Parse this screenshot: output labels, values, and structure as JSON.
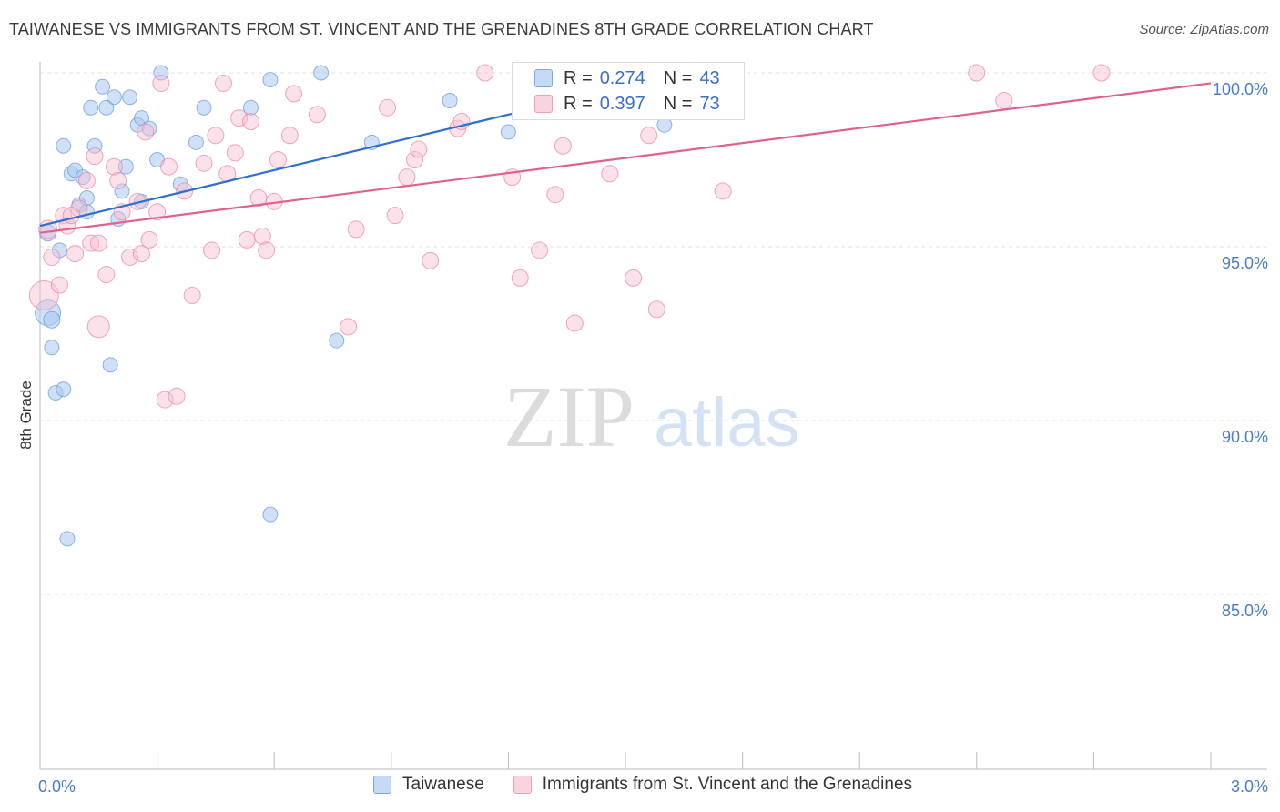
{
  "header": {
    "title": "TAIWANESE VS IMMIGRANTS FROM ST. VINCENT AND THE GRENADINES 8TH GRADE CORRELATION CHART",
    "source": "Source: ZipAtlas.com"
  },
  "watermark": {
    "zip": "ZIP",
    "atlas": "atlas"
  },
  "legend": {
    "rows": [
      {
        "r_label": "R =",
        "r_value": "0.274",
        "n_label": "N =",
        "n_value": "43",
        "color": "#a9c8f0",
        "border": "#6c9be0"
      },
      {
        "r_label": "R =",
        "r_value": "0.397",
        "n_label": "N =",
        "n_value": "73",
        "color": "#f7bfd0",
        "border": "#e88aa8"
      }
    ]
  },
  "bottom_legend": {
    "items": [
      {
        "label": "Taiwanese",
        "color": "#c4daf5",
        "border": "#7aa6e2"
      },
      {
        "label": "Immigrants from St. Vincent and the Grenadines",
        "color": "#fbd3de",
        "border": "#ee9fb8"
      }
    ]
  },
  "chart_data": {
    "type": "scatter",
    "title": "TAIWANESE VS IMMIGRANTS FROM ST. VINCENT AND THE GRENADINES 8TH GRADE CORRELATION CHART",
    "xlabel": "",
    "ylabel": "8th Grade",
    "xlim": [
      0.0,
      3.0
    ],
    "ylim": [
      80.0,
      100.5
    ],
    "x_tick_labels": [
      "0.0%",
      "3.0%"
    ],
    "y_ticks": [
      100.0,
      95.0,
      90.0,
      85.0
    ],
    "y_tick_labels": [
      "100.0%",
      "95.0%",
      "90.0%",
      "85.0%"
    ],
    "grid": true,
    "legend_position": "top-center",
    "series": [
      {
        "name": "Taiwanese",
        "color": "#6c9be0",
        "fill": "#a9c8f0",
        "trend": {
          "x": [
            0.0,
            1.65
          ],
          "y": [
            95.6,
            100.0
          ]
        },
        "points": [
          {
            "x": 0.02,
            "y": 93.1,
            "s": 14
          },
          {
            "x": 0.03,
            "y": 92.9,
            "s": 9
          },
          {
            "x": 0.02,
            "y": 95.4,
            "s": 9
          },
          {
            "x": 0.05,
            "y": 94.9,
            "s": 8
          },
          {
            "x": 0.03,
            "y": 92.1,
            "s": 8
          },
          {
            "x": 0.04,
            "y": 90.8,
            "s": 8
          },
          {
            "x": 0.06,
            "y": 90.9,
            "s": 8
          },
          {
            "x": 0.07,
            "y": 86.6,
            "s": 8
          },
          {
            "x": 0.06,
            "y": 97.9,
            "s": 8
          },
          {
            "x": 0.08,
            "y": 97.1,
            "s": 8
          },
          {
            "x": 0.09,
            "y": 97.2,
            "s": 8
          },
          {
            "x": 0.11,
            "y": 97.0,
            "s": 8
          },
          {
            "x": 0.1,
            "y": 96.2,
            "s": 8
          },
          {
            "x": 0.12,
            "y": 96.4,
            "s": 8
          },
          {
            "x": 0.12,
            "y": 96.0,
            "s": 8
          },
          {
            "x": 0.13,
            "y": 99.0,
            "s": 8
          },
          {
            "x": 0.14,
            "y": 97.9,
            "s": 8
          },
          {
            "x": 0.16,
            "y": 99.6,
            "s": 8
          },
          {
            "x": 0.17,
            "y": 99.0,
            "s": 8
          },
          {
            "x": 0.19,
            "y": 99.3,
            "s": 8
          },
          {
            "x": 0.2,
            "y": 95.8,
            "s": 8
          },
          {
            "x": 0.21,
            "y": 96.6,
            "s": 8
          },
          {
            "x": 0.22,
            "y": 97.3,
            "s": 8
          },
          {
            "x": 0.23,
            "y": 99.3,
            "s": 8
          },
          {
            "x": 0.25,
            "y": 98.5,
            "s": 8
          },
          {
            "x": 0.26,
            "y": 96.3,
            "s": 8
          },
          {
            "x": 0.26,
            "y": 98.7,
            "s": 8
          },
          {
            "x": 0.28,
            "y": 98.4,
            "s": 8
          },
          {
            "x": 0.3,
            "y": 97.5,
            "s": 8
          },
          {
            "x": 0.31,
            "y": 100.0,
            "s": 8
          },
          {
            "x": 0.18,
            "y": 91.6,
            "s": 8
          },
          {
            "x": 0.36,
            "y": 96.8,
            "s": 8
          },
          {
            "x": 0.4,
            "y": 98.0,
            "s": 8
          },
          {
            "x": 0.42,
            "y": 99.0,
            "s": 8
          },
          {
            "x": 0.54,
            "y": 99.0,
            "s": 8
          },
          {
            "x": 0.59,
            "y": 87.3,
            "s": 8
          },
          {
            "x": 0.59,
            "y": 99.8,
            "s": 8
          },
          {
            "x": 0.72,
            "y": 100.0,
            "s": 8
          },
          {
            "x": 0.76,
            "y": 92.3,
            "s": 8
          },
          {
            "x": 0.85,
            "y": 98.0,
            "s": 8
          },
          {
            "x": 1.05,
            "y": 99.2,
            "s": 8
          },
          {
            "x": 1.2,
            "y": 98.3,
            "s": 8
          },
          {
            "x": 1.6,
            "y": 98.5,
            "s": 8
          }
        ]
      },
      {
        "name": "Immigrants from St. Vincent and the Grenadines",
        "color": "#e88aa8",
        "fill": "#f7bfd0",
        "trend": {
          "x": [
            0.0,
            3.0
          ],
          "y": [
            95.4,
            99.7
          ]
        },
        "points": [
          {
            "x": 0.01,
            "y": 93.6,
            "s": 16
          },
          {
            "x": 0.02,
            "y": 95.5,
            "s": 10
          },
          {
            "x": 0.03,
            "y": 94.7,
            "s": 9
          },
          {
            "x": 0.05,
            "y": 93.9,
            "s": 9
          },
          {
            "x": 0.06,
            "y": 95.9,
            "s": 9
          },
          {
            "x": 0.07,
            "y": 95.6,
            "s": 9
          },
          {
            "x": 0.09,
            "y": 94.8,
            "s": 9
          },
          {
            "x": 0.1,
            "y": 96.1,
            "s": 9
          },
          {
            "x": 0.12,
            "y": 96.9,
            "s": 9
          },
          {
            "x": 0.13,
            "y": 95.1,
            "s": 9
          },
          {
            "x": 0.15,
            "y": 95.1,
            "s": 9
          },
          {
            "x": 0.15,
            "y": 92.7,
            "s": 12
          },
          {
            "x": 0.17,
            "y": 94.2,
            "s": 9
          },
          {
            "x": 0.19,
            "y": 97.3,
            "s": 9
          },
          {
            "x": 0.2,
            "y": 96.9,
            "s": 9
          },
          {
            "x": 0.21,
            "y": 96.0,
            "s": 9
          },
          {
            "x": 0.23,
            "y": 94.7,
            "s": 9
          },
          {
            "x": 0.25,
            "y": 96.3,
            "s": 9
          },
          {
            "x": 0.26,
            "y": 94.8,
            "s": 9
          },
          {
            "x": 0.27,
            "y": 98.3,
            "s": 9
          },
          {
            "x": 0.28,
            "y": 95.2,
            "s": 9
          },
          {
            "x": 0.3,
            "y": 96.0,
            "s": 9
          },
          {
            "x": 0.31,
            "y": 99.7,
            "s": 9
          },
          {
            "x": 0.32,
            "y": 90.6,
            "s": 9
          },
          {
            "x": 0.33,
            "y": 97.3,
            "s": 9
          },
          {
            "x": 0.35,
            "y": 90.7,
            "s": 9
          },
          {
            "x": 0.37,
            "y": 96.6,
            "s": 9
          },
          {
            "x": 0.39,
            "y": 93.6,
            "s": 9
          },
          {
            "x": 0.42,
            "y": 97.4,
            "s": 9
          },
          {
            "x": 0.44,
            "y": 94.9,
            "s": 9
          },
          {
            "x": 0.45,
            "y": 98.2,
            "s": 9
          },
          {
            "x": 0.47,
            "y": 99.7,
            "s": 9
          },
          {
            "x": 0.48,
            "y": 97.1,
            "s": 9
          },
          {
            "x": 0.5,
            "y": 97.7,
            "s": 9
          },
          {
            "x": 0.51,
            "y": 98.7,
            "s": 9
          },
          {
            "x": 0.53,
            "y": 95.2,
            "s": 9
          },
          {
            "x": 0.54,
            "y": 98.6,
            "s": 9
          },
          {
            "x": 0.56,
            "y": 96.4,
            "s": 9
          },
          {
            "x": 0.57,
            "y": 95.3,
            "s": 9
          },
          {
            "x": 0.58,
            "y": 94.9,
            "s": 9
          },
          {
            "x": 0.6,
            "y": 96.3,
            "s": 9
          },
          {
            "x": 0.61,
            "y": 97.5,
            "s": 9
          },
          {
            "x": 0.64,
            "y": 98.2,
            "s": 9
          },
          {
            "x": 0.65,
            "y": 99.4,
            "s": 9
          },
          {
            "x": 0.71,
            "y": 98.8,
            "s": 9
          },
          {
            "x": 0.79,
            "y": 92.7,
            "s": 9
          },
          {
            "x": 0.81,
            "y": 95.5,
            "s": 9
          },
          {
            "x": 0.89,
            "y": 99.0,
            "s": 9
          },
          {
            "x": 0.91,
            "y": 95.9,
            "s": 9
          },
          {
            "x": 0.94,
            "y": 97.0,
            "s": 9
          },
          {
            "x": 0.96,
            "y": 97.5,
            "s": 9
          },
          {
            "x": 0.97,
            "y": 97.8,
            "s": 9
          },
          {
            "x": 1.0,
            "y": 94.6,
            "s": 9
          },
          {
            "x": 1.07,
            "y": 98.4,
            "s": 9
          },
          {
            "x": 1.08,
            "y": 98.6,
            "s": 9
          },
          {
            "x": 1.14,
            "y": 100.0,
            "s": 9
          },
          {
            "x": 1.21,
            "y": 97.0,
            "s": 9
          },
          {
            "x": 1.23,
            "y": 94.1,
            "s": 9
          },
          {
            "x": 1.28,
            "y": 94.9,
            "s": 9
          },
          {
            "x": 1.32,
            "y": 96.5,
            "s": 9
          },
          {
            "x": 1.34,
            "y": 97.9,
            "s": 9
          },
          {
            "x": 1.37,
            "y": 92.8,
            "s": 9
          },
          {
            "x": 1.46,
            "y": 97.1,
            "s": 9
          },
          {
            "x": 1.52,
            "y": 94.1,
            "s": 9
          },
          {
            "x": 1.56,
            "y": 98.2,
            "s": 9
          },
          {
            "x": 1.58,
            "y": 93.2,
            "s": 9
          },
          {
            "x": 1.61,
            "y": 100.0,
            "s": 9
          },
          {
            "x": 1.75,
            "y": 96.6,
            "s": 9
          },
          {
            "x": 2.4,
            "y": 100.0,
            "s": 9
          },
          {
            "x": 2.47,
            "y": 99.2,
            "s": 9
          },
          {
            "x": 2.72,
            "y": 100.0,
            "s": 9
          },
          {
            "x": 0.08,
            "y": 95.9,
            "s": 9
          },
          {
            "x": 0.14,
            "y": 97.6,
            "s": 9
          }
        ]
      }
    ]
  }
}
